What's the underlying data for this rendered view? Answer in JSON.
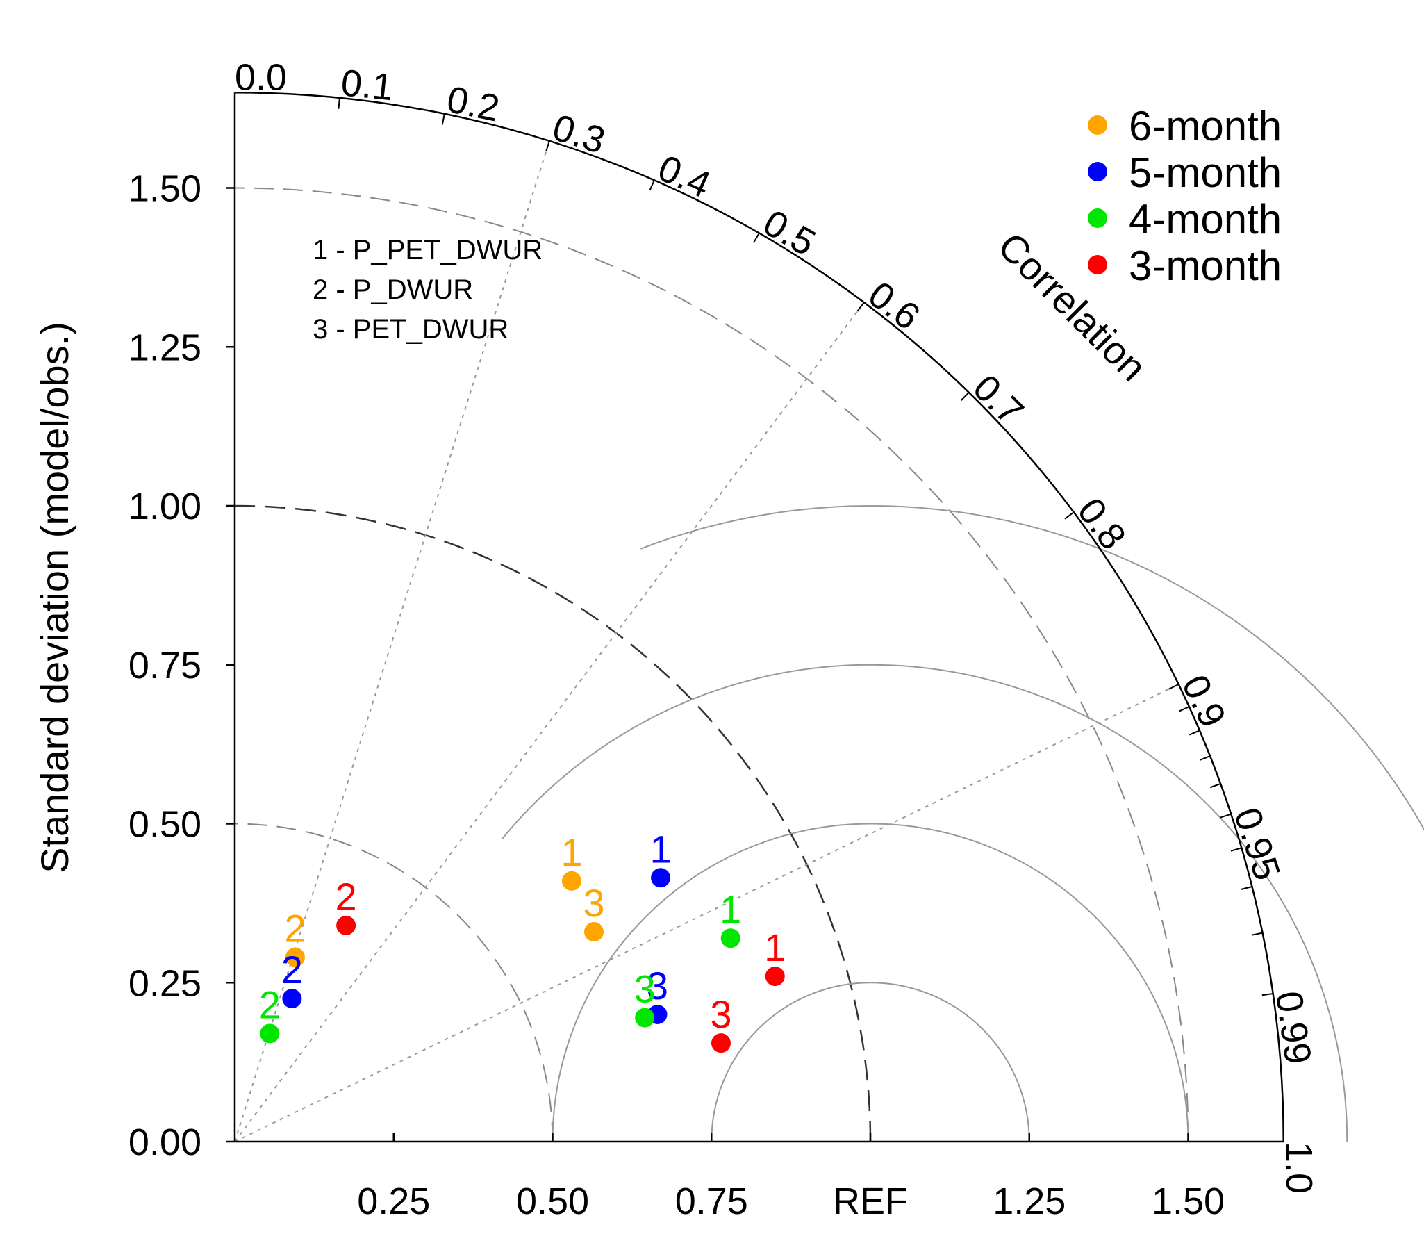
{
  "chart_data": {
    "type": "scatter",
    "subtype": "taylor-diagram",
    "title": "",
    "ylabel": "Standard deviation (model/obs.)",
    "arc_label": "Correlation",
    "ref_label": "REF",
    "std_max": 1.65,
    "std_ticks": [
      "0.00",
      "0.25",
      "0.50",
      "0.75",
      "1.00",
      "1.25",
      "1.50"
    ],
    "x_ticks": [
      "0.25",
      "0.50",
      "0.75",
      "1.25",
      "1.50"
    ],
    "corr_ticks": [
      "0.0",
      "0.1",
      "0.2",
      "0.3",
      "0.4",
      "0.5",
      "0.6",
      "0.7",
      "0.8",
      "0.9",
      "0.95",
      "0.99",
      "1.0"
    ],
    "legend": [
      {
        "name": "6-month",
        "color": "#ffa500"
      },
      {
        "name": "5-month",
        "color": "#0000ff"
      },
      {
        "name": "4-month",
        "color": "#00e600"
      },
      {
        "name": "3-month",
        "color": "#ff0000"
      }
    ],
    "case_notes": [
      "1 - P_PET_DWUR",
      "2 - P_DWUR",
      "3 - PET_DWUR"
    ],
    "series": [
      {
        "name": "6-month",
        "color": "#ffa500",
        "points": [
          {
            "label": "1",
            "x": 0.53,
            "y": 0.41
          },
          {
            "label": "2",
            "x": 0.095,
            "y": 0.29
          },
          {
            "label": "3",
            "x": 0.565,
            "y": 0.33
          }
        ]
      },
      {
        "name": "5-month",
        "color": "#0000ff",
        "points": [
          {
            "label": "1",
            "x": 0.67,
            "y": 0.415
          },
          {
            "label": "2",
            "x": 0.09,
            "y": 0.225
          },
          {
            "label": "3",
            "x": 0.665,
            "y": 0.2
          }
        ]
      },
      {
        "name": "4-month",
        "color": "#00e600",
        "points": [
          {
            "label": "1",
            "x": 0.78,
            "y": 0.32
          },
          {
            "label": "2",
            "x": 0.055,
            "y": 0.17
          },
          {
            "label": "3",
            "x": 0.645,
            "y": 0.195
          }
        ]
      },
      {
        "name": "3-month",
        "color": "#ff0000",
        "points": [
          {
            "label": "1",
            "x": 0.85,
            "y": 0.26
          },
          {
            "label": "2",
            "x": 0.175,
            "y": 0.34
          },
          {
            "label": "3",
            "x": 0.765,
            "y": 0.155
          }
        ]
      }
    ]
  }
}
